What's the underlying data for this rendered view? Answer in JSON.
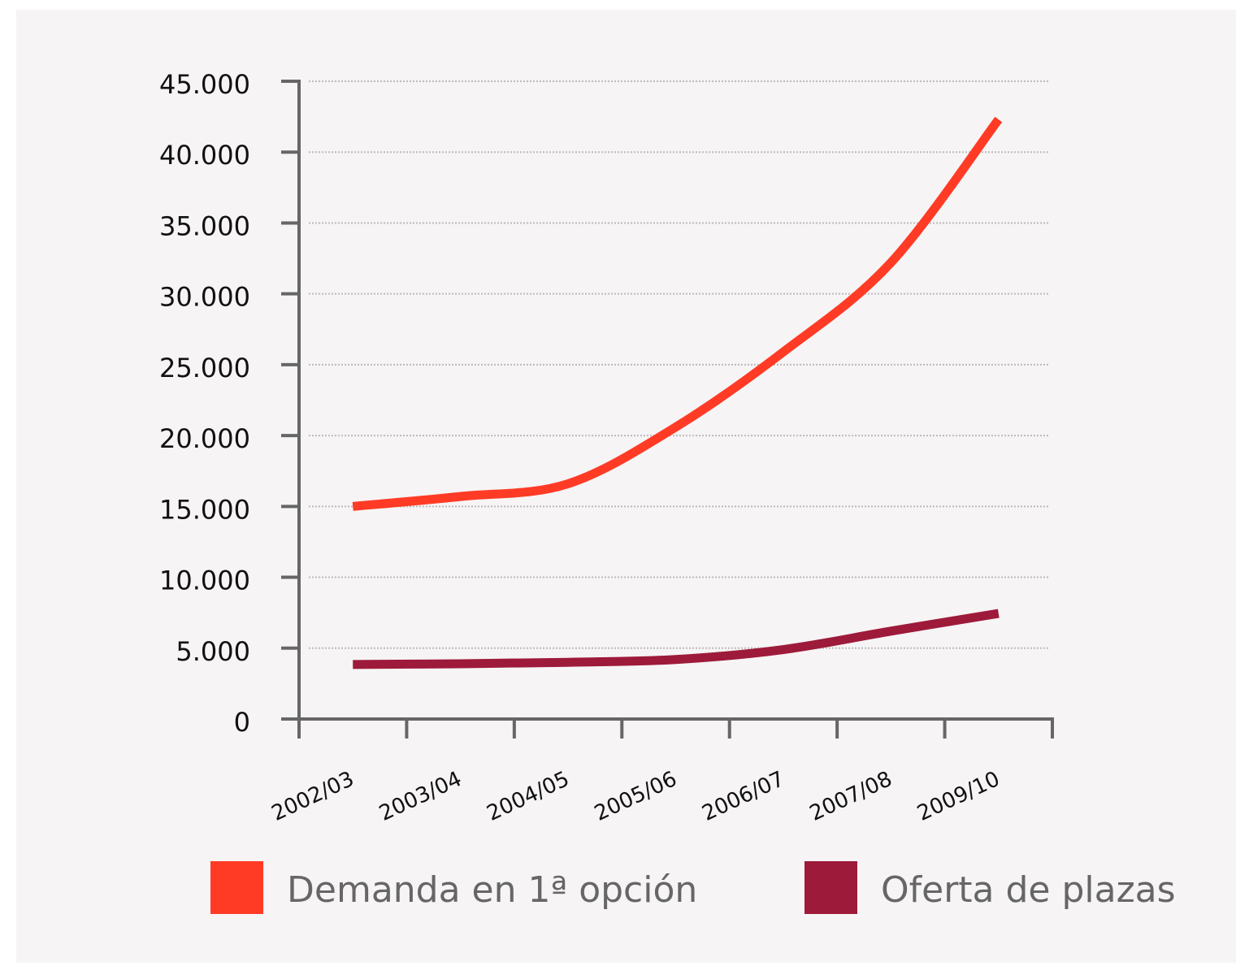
{
  "chart_data": {
    "type": "line",
    "categories": [
      "2002/03",
      "2003/04",
      "2004/05",
      "2005/06",
      "2006/07",
      "2007/08",
      "2009/10"
    ],
    "series": [
      {
        "name": "Demanda en 1ª opción",
        "color": "#ff3b26",
        "values": [
          15000,
          15700,
          16600,
          20600,
          25900,
          32200,
          42300
        ]
      },
      {
        "name": "Oferta de plazas",
        "color": "#9e1a3a",
        "values": [
          3850,
          3900,
          4000,
          4200,
          4900,
          6200,
          7450
        ]
      }
    ],
    "ylim": [
      0,
      45000
    ],
    "yticks": [
      0,
      {
        "value": 5000,
        "label": "5.000"
      },
      {
        "value": 10000,
        "label": "10.000"
      },
      {
        "value": 15000,
        "label": "15.000"
      },
      {
        "value": 20000,
        "label": "20.000"
      },
      {
        "value": 25000,
        "label": "25.000"
      },
      {
        "value": 30000,
        "label": "30.000"
      },
      {
        "value": 35000,
        "label": "35.000"
      },
      {
        "value": 40000,
        "label": "40.000"
      },
      {
        "value": 45000,
        "label": "45.000"
      }
    ],
    "grid": true
  }
}
